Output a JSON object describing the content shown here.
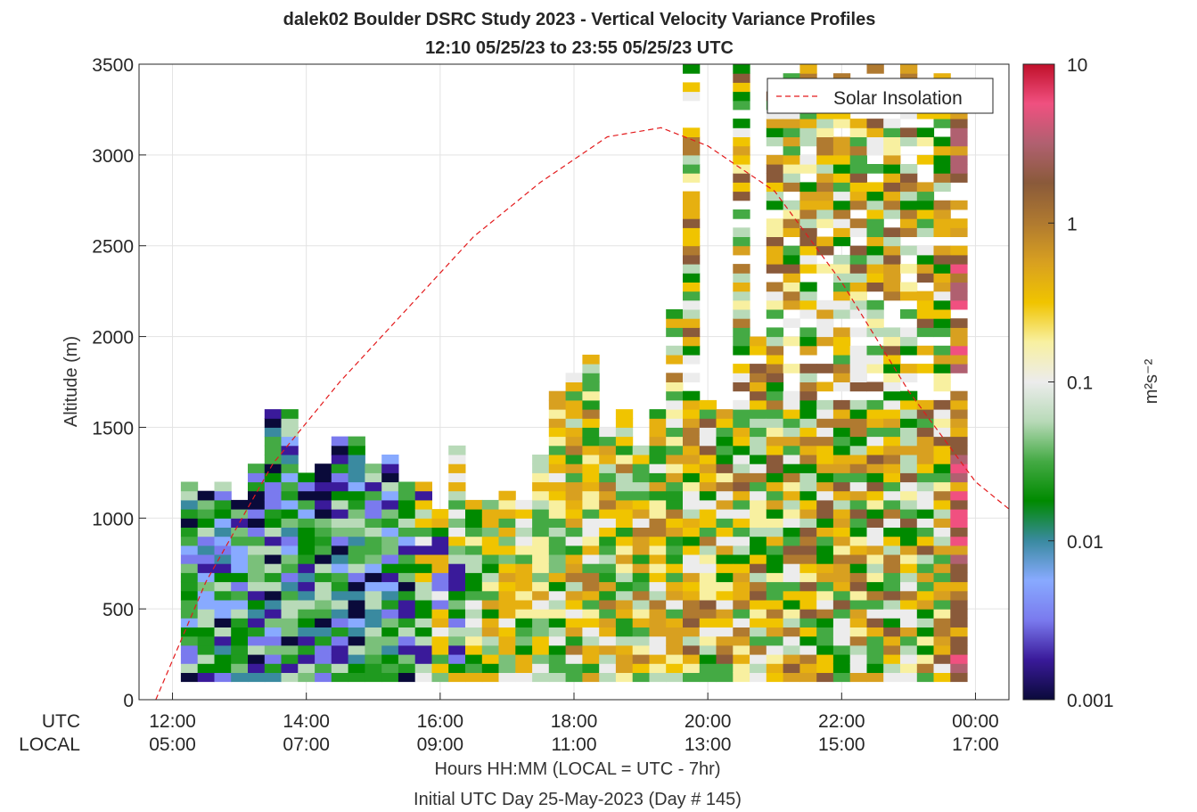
{
  "chart_data": {
    "type": "heatmap",
    "title": "dalek02 Boulder DSRC Study 2023 - Vertical Velocity Variance Profiles",
    "subtitle": "12:10 05/25/23 to 23:55 05/25/23  UTC",
    "ylabel": "Altitude (m)",
    "xlabel": "Hours HH:MM  (LOCAL = UTC - 7hr)",
    "xlabel2": "Initial UTC Day 25-May-2023 (Day # 145)",
    "row_labels": [
      "UTC",
      "LOCAL"
    ],
    "ylim": [
      0,
      3500
    ],
    "yticks": [
      "0",
      "500",
      "1000",
      "1500",
      "2000",
      "2500",
      "3000",
      "3500"
    ],
    "xlim_utc_hours": [
      11.5,
      24.5
    ],
    "xticks_utc": [
      "12:00",
      "14:00",
      "16:00",
      "18:00",
      "20:00",
      "22:00",
      "00:00"
    ],
    "xticks_local": [
      "05:00",
      "07:00",
      "09:00",
      "11:00",
      "13:00",
      "15:00",
      "17:00"
    ],
    "grid": true,
    "legend": {
      "label": "Solar Insolation",
      "position": "top-right",
      "color": "#e31a1c",
      "style": "dashed"
    },
    "colorbar": {
      "label": "m²s⁻²",
      "scale": "log",
      "range": [
        0.001,
        10
      ],
      "ticks": [
        "0.001",
        "0.01",
        "0.1",
        "1",
        "10"
      ],
      "colors": [
        "#0a0a3a",
        "#3a1a9a",
        "#7a7aee",
        "#88aaff",
        "#3a8aa0",
        "#008a00",
        "#44aa44",
        "#b8dab8",
        "#ececec",
        "#f8f0a0",
        "#f0c400",
        "#d8a020",
        "#b07a30",
        "#8a5a3a",
        "#b06070",
        "#f05080",
        "#c0102a"
      ]
    },
    "time_bin_hours": 0.25,
    "altitude_bin_m": 50,
    "profiles": [
      {
        "t_utc": 12.25,
        "top_m": 1200,
        "level": "low"
      },
      {
        "t_utc": 12.5,
        "top_m": 1150,
        "level": "low"
      },
      {
        "t_utc": 12.75,
        "top_m": 1200,
        "level": "low"
      },
      {
        "t_utc": 13.0,
        "top_m": 1100,
        "level": "low"
      },
      {
        "t_utc": 13.25,
        "top_m": 1300,
        "level": "low"
      },
      {
        "t_utc": 13.5,
        "top_m": 1600,
        "level": "low"
      },
      {
        "t_utc": 13.75,
        "top_m": 1600,
        "level": "low"
      },
      {
        "t_utc": 14.0,
        "top_m": 1250,
        "level": "low"
      },
      {
        "t_utc": 14.25,
        "top_m": 1300,
        "level": "low"
      },
      {
        "t_utc": 14.5,
        "top_m": 1450,
        "level": "low"
      },
      {
        "t_utc": 14.75,
        "top_m": 1450,
        "level": "low"
      },
      {
        "t_utc": 15.0,
        "top_m": 1300,
        "level": "low"
      },
      {
        "t_utc": 15.25,
        "top_m": 1350,
        "level": "low"
      },
      {
        "t_utc": 15.5,
        "top_m": 1200,
        "level": "low"
      },
      {
        "t_utc": 15.75,
        "top_m": 1200,
        "level": "low_mid"
      },
      {
        "t_utc": 16.0,
        "top_m": 1050,
        "level": "low_mid"
      },
      {
        "t_utc": 16.25,
        "top_m": 1400,
        "level": "low_mid"
      },
      {
        "t_utc": 16.5,
        "top_m": 1100,
        "level": "mid"
      },
      {
        "t_utc": 16.75,
        "top_m": 1100,
        "level": "mid"
      },
      {
        "t_utc": 17.0,
        "top_m": 1150,
        "level": "mid"
      },
      {
        "t_utc": 17.25,
        "top_m": 1100,
        "level": "mid"
      },
      {
        "t_utc": 17.5,
        "top_m": 1350,
        "level": "mid"
      },
      {
        "t_utc": 17.75,
        "top_m": 1700,
        "level": "mid"
      },
      {
        "t_utc": 18.0,
        "top_m": 1800,
        "level": "mid_high"
      },
      {
        "t_utc": 18.25,
        "top_m": 1900,
        "level": "mid_high"
      },
      {
        "t_utc": 18.5,
        "top_m": 1500,
        "level": "mid_high"
      },
      {
        "t_utc": 18.75,
        "top_m": 1600,
        "level": "mid_high"
      },
      {
        "t_utc": 19.0,
        "top_m": 1400,
        "level": "mid_high"
      },
      {
        "t_utc": 19.25,
        "top_m": 1600,
        "level": "mid_high"
      },
      {
        "t_utc": 19.5,
        "top_m": 2150,
        "level": "mid_high"
      },
      {
        "t_utc": 19.75,
        "top_m": 3500,
        "level": "high"
      },
      {
        "t_utc": 20.0,
        "top_m": 1650,
        "level": "high"
      },
      {
        "t_utc": 20.25,
        "top_m": 1600,
        "level": "high"
      },
      {
        "t_utc": 20.5,
        "top_m": 3500,
        "level": "high"
      },
      {
        "t_utc": 20.75,
        "top_m": 2000,
        "level": "high"
      },
      {
        "t_utc": 21.0,
        "top_m": 3350,
        "level": "high"
      },
      {
        "t_utc": 21.25,
        "top_m": 3500,
        "level": "high"
      },
      {
        "t_utc": 21.5,
        "top_m": 3500,
        "level": "high"
      },
      {
        "t_utc": 21.75,
        "top_m": 3450,
        "level": "high"
      },
      {
        "t_utc": 22.0,
        "top_m": 3500,
        "level": "high"
      },
      {
        "t_utc": 22.25,
        "top_m": 3300,
        "level": "high"
      },
      {
        "t_utc": 22.5,
        "top_m": 3500,
        "level": "high"
      },
      {
        "t_utc": 22.75,
        "top_m": 3250,
        "level": "high"
      },
      {
        "t_utc": 23.0,
        "top_m": 3500,
        "level": "high"
      },
      {
        "t_utc": 23.25,
        "top_m": 3500,
        "level": "high"
      },
      {
        "t_utc": 23.5,
        "top_m": 3500,
        "level": "high"
      },
      {
        "t_utc": 23.75,
        "top_m": 3400,
        "level": "very_high"
      }
    ],
    "solar_insolation_curve": {
      "x_utc": [
        11.75,
        12.5,
        13.5,
        14.5,
        15.5,
        16.5,
        17.5,
        18.5,
        19.3,
        20.0,
        21.0,
        22.0,
        23.0,
        24.0,
        24.5
      ],
      "y_m": [
        0,
        650,
        1300,
        1750,
        2150,
        2550,
        2850,
        3100,
        3150,
        3050,
        2800,
        2300,
        1700,
        1200,
        1050
      ]
    }
  }
}
